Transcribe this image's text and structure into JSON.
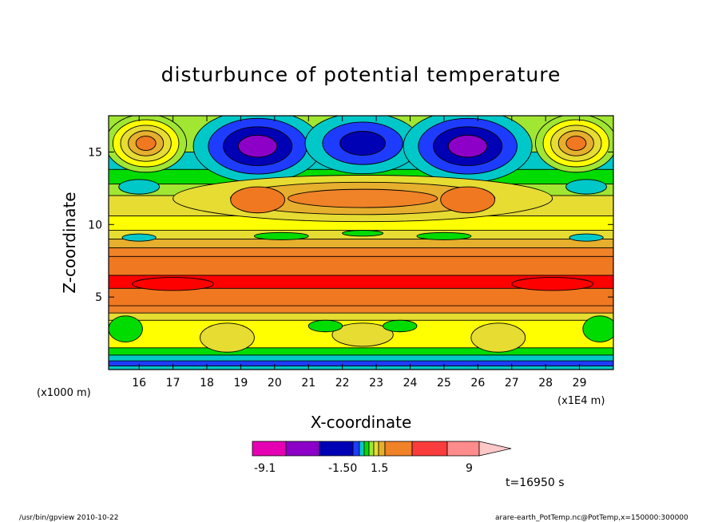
{
  "chart_data": {
    "type": "heatmap",
    "title": "disturbunce of potential temperature",
    "xlabel": "X-coordinate",
    "ylabel": "Z-coordinate",
    "x_unit_label": "(x1E4 m)",
    "y_unit_label": "(x1000 m)",
    "xlim": [
      15.1,
      30.0
    ],
    "ylim": [
      0,
      17.5
    ],
    "x_ticks": [
      "16",
      "17",
      "18",
      "19",
      "20",
      "21",
      "22",
      "23",
      "24",
      "25",
      "26",
      "27",
      "28",
      "29"
    ],
    "y_ticks": [
      "5",
      "10",
      "15"
    ],
    "x_tick_values": [
      16,
      17,
      18,
      19,
      20,
      21,
      22,
      23,
      24,
      25,
      26,
      27,
      28,
      29
    ],
    "y_tick_values": [
      5,
      10,
      15
    ],
    "colorbar": {
      "colors": [
        "#e600b4",
        "#8c00c8",
        "#0000b4",
        "#1e3cff",
        "#00c8c8",
        "#00dc00",
        "#a0e632",
        "#e6dc32",
        "#e6af2d",
        "#f08228",
        "#fa3c3c",
        "#ff8c8c",
        "#ffc8c8"
      ],
      "labels": [
        "-9.1",
        "-1.50",
        "1.5",
        "9"
      ],
      "label_values": [
        -9.1,
        -1.5,
        1.5,
        9
      ]
    },
    "bands": [
      {
        "z0": 0.0,
        "z1": 0.25,
        "color": "#00c8c8"
      },
      {
        "z0": 0.25,
        "z1": 0.6,
        "color": "#1e3cff"
      },
      {
        "z0": 0.6,
        "z1": 1.0,
        "color": "#00c8c8"
      },
      {
        "z0": 1.0,
        "z1": 1.5,
        "color": "#00dc00"
      },
      {
        "z0": 1.5,
        "z1": 3.4,
        "color": "#ffff00"
      },
      {
        "z0": 3.4,
        "z1": 3.9,
        "color": "#e6dc32"
      },
      {
        "z0": 3.9,
        "z1": 4.4,
        "color": "#f08228"
      },
      {
        "z0": 4.4,
        "z1": 5.6,
        "color": "#f07820"
      },
      {
        "z0": 5.6,
        "z1": 6.5,
        "color": "#ff0000"
      },
      {
        "z0": 6.5,
        "z1": 7.8,
        "color": "#f07820"
      },
      {
        "z0": 7.8,
        "z1": 8.4,
        "color": "#f08228"
      },
      {
        "z0": 8.4,
        "z1": 9.0,
        "color": "#e6af2d"
      },
      {
        "z0": 9.0,
        "z1": 9.6,
        "color": "#e6dc32"
      },
      {
        "z0": 9.6,
        "z1": 10.6,
        "color": "#ffff00"
      },
      {
        "z0": 10.6,
        "z1": 12.0,
        "color": "#e6dc32"
      },
      {
        "z0": 12.0,
        "z1": 12.8,
        "color": "#a0e632"
      },
      {
        "z0": 12.8,
        "z1": 13.8,
        "color": "#00dc00"
      },
      {
        "z0": 13.8,
        "z1": 15.0,
        "color": "#00c8c8"
      },
      {
        "z0": 15.0,
        "z1": 17.5,
        "color": "#a0e632"
      }
    ],
    "blobs": [
      {
        "x": 16.2,
        "z": 15.6,
        "rx": 1.2,
        "rz": 2.0,
        "levels": [
          "#a0e632",
          "#ffff00",
          "#e6dc32",
          "#e6af2d",
          "#f07820"
        ]
      },
      {
        "x": 28.9,
        "z": 15.6,
        "rx": 1.2,
        "rz": 2.0,
        "levels": [
          "#a0e632",
          "#ffff00",
          "#e6dc32",
          "#e6af2d",
          "#f07820"
        ]
      },
      {
        "x": 19.5,
        "z": 15.4,
        "rx": 1.9,
        "rz": 2.5,
        "levels": [
          "#00c8c8",
          "#1e3cff",
          "#0000b4",
          "#8c00c8"
        ]
      },
      {
        "x": 22.6,
        "z": 15.6,
        "rx": 1.7,
        "rz": 2.1,
        "levels": [
          "#00c8c8",
          "#1e3cff",
          "#0000b4"
        ]
      },
      {
        "x": 25.7,
        "z": 15.4,
        "rx": 1.9,
        "rz": 2.5,
        "levels": [
          "#00c8c8",
          "#1e3cff",
          "#0000b4",
          "#8c00c8"
        ]
      },
      {
        "x": 22.6,
        "z": 11.8,
        "rx": 5.6,
        "rz": 1.6,
        "levels": [
          "#e6dc32",
          "#e6af2d",
          "#f08228"
        ]
      },
      {
        "x": 19.5,
        "z": 11.7,
        "rx": 0.8,
        "rz": 0.9,
        "levels": [
          "#f07820"
        ]
      },
      {
        "x": 25.7,
        "z": 11.7,
        "rx": 0.8,
        "rz": 0.9,
        "levels": [
          "#f07820"
        ]
      },
      {
        "x": 17.0,
        "z": 5.9,
        "rx": 1.2,
        "rz": 0.45,
        "levels": [
          "#ff0000"
        ]
      },
      {
        "x": 28.2,
        "z": 5.9,
        "rx": 1.2,
        "rz": 0.45,
        "levels": [
          "#ff0000"
        ]
      },
      {
        "x": 16.0,
        "z": 12.6,
        "rx": 0.6,
        "rz": 0.5,
        "levels": [
          "#00c8c8"
        ]
      },
      {
        "x": 29.2,
        "z": 12.6,
        "rx": 0.6,
        "rz": 0.5,
        "levels": [
          "#00c8c8"
        ]
      },
      {
        "x": 16.0,
        "z": 9.1,
        "rx": 0.5,
        "rz": 0.25,
        "levels": [
          "#00c8c8"
        ]
      },
      {
        "x": 29.2,
        "z": 9.1,
        "rx": 0.5,
        "rz": 0.25,
        "levels": [
          "#00c8c8"
        ]
      },
      {
        "x": 18.6,
        "z": 2.2,
        "rx": 0.8,
        "rz": 1.0,
        "levels": [
          "#e6dc32"
        ]
      },
      {
        "x": 26.6,
        "z": 2.2,
        "rx": 0.8,
        "rz": 1.0,
        "levels": [
          "#e6dc32"
        ]
      },
      {
        "x": 22.6,
        "z": 2.4,
        "rx": 0.9,
        "rz": 0.8,
        "levels": [
          "#e6dc32"
        ]
      },
      {
        "x": 21.5,
        "z": 3.0,
        "rx": 0.5,
        "rz": 0.4,
        "levels": [
          "#00dc00"
        ]
      },
      {
        "x": 23.7,
        "z": 3.0,
        "rx": 0.5,
        "rz": 0.4,
        "levels": [
          "#00dc00"
        ]
      },
      {
        "x": 15.6,
        "z": 2.8,
        "rx": 0.5,
        "rz": 0.9,
        "levels": [
          "#00dc00"
        ]
      },
      {
        "x": 29.6,
        "z": 2.8,
        "rx": 0.5,
        "rz": 0.9,
        "levels": [
          "#00dc00"
        ]
      },
      {
        "x": 20.2,
        "z": 9.2,
        "rx": 0.8,
        "rz": 0.25,
        "levels": [
          "#00dc00"
        ]
      },
      {
        "x": 25.0,
        "z": 9.2,
        "rx": 0.8,
        "rz": 0.25,
        "levels": [
          "#00dc00"
        ]
      },
      {
        "x": 22.6,
        "z": 9.4,
        "rx": 0.6,
        "rz": 0.2,
        "levels": [
          "#00dc00"
        ]
      }
    ]
  },
  "time_label": "t=16950 s",
  "footer_left": "/usr/bin/gpview 2010-10-22",
  "footer_right": "arare-earth_PotTemp.nc@PotTemp,x=150000:300000"
}
